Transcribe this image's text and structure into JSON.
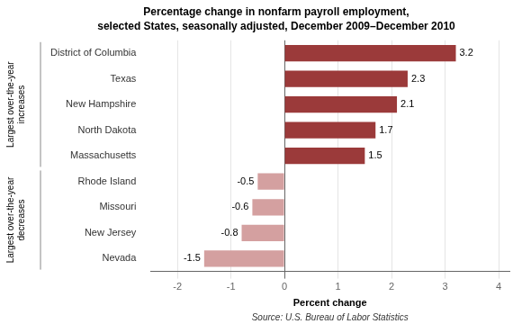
{
  "chart_data": {
    "type": "bar",
    "orientation": "horizontal",
    "title": "Percentage change in nonfarm payroll employment,",
    "subtitle": "selected States, seasonally adjusted, December 2009–December 2010",
    "xlabel": "Percent change",
    "categories": [
      "District of Columbia",
      "Texas",
      "New Hampshire",
      "North Dakota",
      "Massachusetts",
      "Rhode Island",
      "Missouri",
      "New Jersey",
      "Nevada"
    ],
    "values": [
      3.2,
      2.3,
      2.1,
      1.7,
      1.5,
      -0.5,
      -0.6,
      -0.8,
      -1.5
    ],
    "colors": [
      "#9B3A3A",
      "#9B3A3A",
      "#9B3A3A",
      "#9B3A3A",
      "#9B3A3A",
      "#D4A0A0",
      "#D4A0A0",
      "#D4A0A0",
      "#D4A0A0"
    ],
    "xlim": [
      -2.5,
      4.2
    ],
    "xticks": [
      -2,
      -1,
      0,
      1,
      2,
      3,
      4
    ],
    "grid": true,
    "data_labels": true,
    "annotations": [
      "Largest over-the-year increases",
      "Largest over-the-year decreases",
      "Source: U.S. Bureau of Labor Statistics"
    ]
  }
}
